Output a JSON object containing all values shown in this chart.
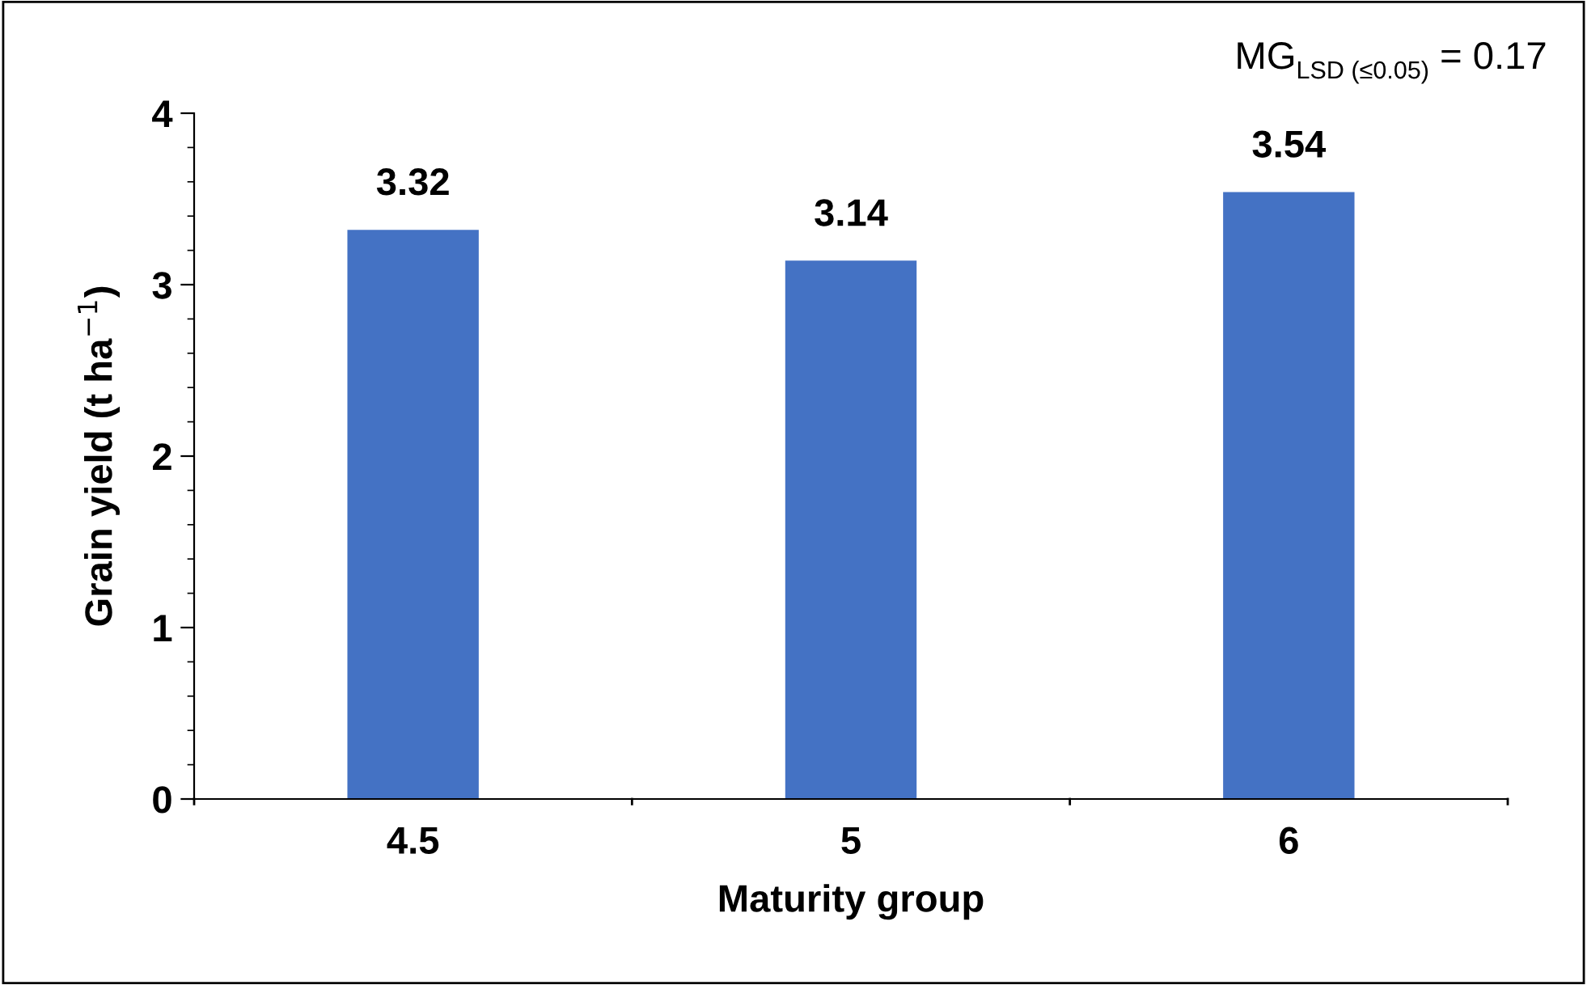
{
  "chart_data": {
    "type": "bar",
    "xlabel": "Maturity group",
    "ylabel": "Grain yield (t ha$^{−1}$)",
    "categories": [
      "4.5",
      "5",
      "6"
    ],
    "values": [
      3.32,
      3.14,
      3.54
    ],
    "color": "#4472c4",
    "ylim": [
      0,
      4
    ],
    "yticks": [
      0,
      1,
      2,
      3,
      4
    ],
    "grid": false,
    "data_labels": true,
    "annotations": [
      "MG$_{LSD (≤0.05)}$ = 0.17"
    ]
  }
}
